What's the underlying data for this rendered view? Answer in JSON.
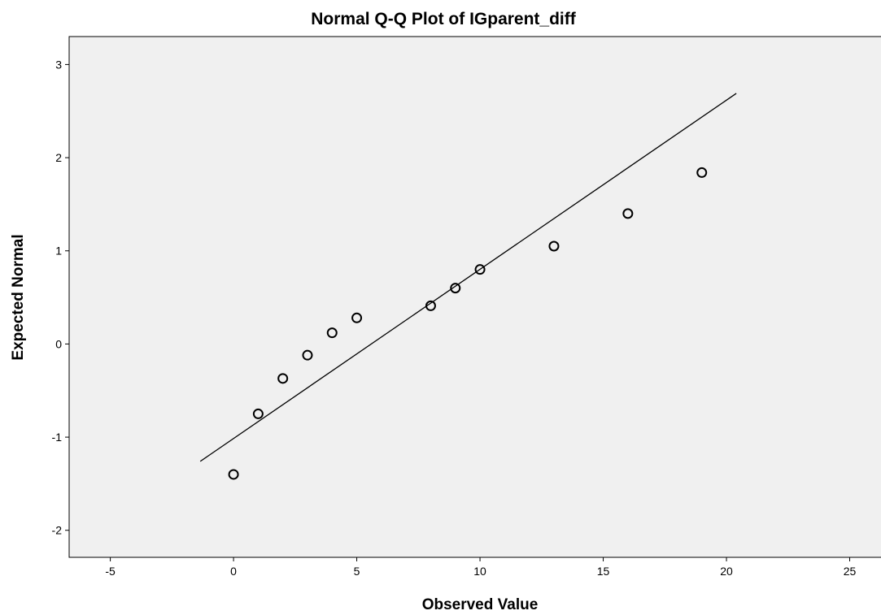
{
  "chart_data": {
    "type": "scatter",
    "title": "Normal Q-Q Plot of IGparent_diff",
    "x_label": "Observed Value",
    "y_label": "Expected Normal",
    "x": [
      0,
      1,
      2,
      3,
      4,
      5,
      8,
      9,
      10,
      13,
      16,
      19
    ],
    "values": [
      -1.4,
      -0.75,
      -0.37,
      -0.12,
      0.12,
      0.28,
      0.41,
      0.6,
      0.8,
      1.05,
      1.4,
      1.84
    ],
    "color": "#000000",
    "reference_line": {
      "x": [
        -1.35,
        20.4
      ],
      "y": [
        -1.26,
        2.69
      ]
    },
    "xlim": [
      -6.67,
      26.27
    ],
    "ylim": [
      -2.29,
      3.3
    ],
    "xticks": [
      -5,
      0,
      5,
      10,
      15,
      20,
      25
    ],
    "yticks": [
      -2,
      -1,
      0,
      1,
      2,
      3
    ],
    "background": "#f0f0f0"
  }
}
